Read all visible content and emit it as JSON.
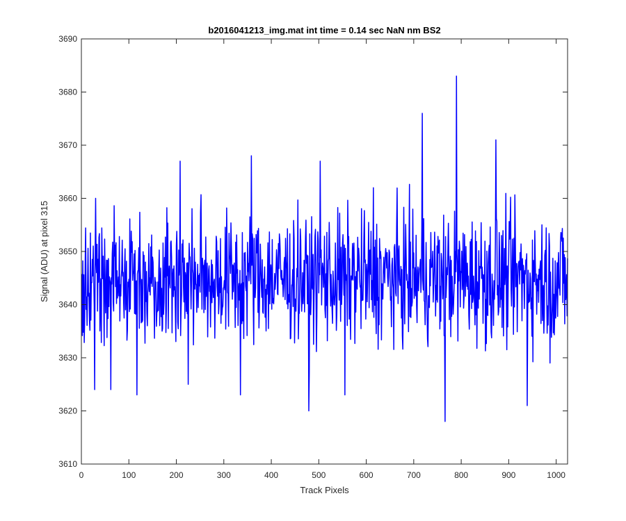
{
  "chart_data": {
    "type": "line",
    "title": "b2016041213_img.mat int time = 0.14 sec  NaN nm BS2",
    "xlabel": "Track Pixels",
    "ylabel": "Signal (ADU) at pixel 315",
    "xlim": [
      0,
      1024
    ],
    "ylim": [
      3610,
      3690
    ],
    "xticks": [
      0,
      100,
      200,
      300,
      400,
      500,
      600,
      700,
      800,
      900,
      1000
    ],
    "yticks": [
      3610,
      3620,
      3630,
      3640,
      3650,
      3660,
      3670,
      3680,
      3690
    ],
    "grid": false,
    "series": [
      {
        "color": "#0000ff",
        "x_start": 1,
        "x_step": 1,
        "noise_seed": 315,
        "mean": 3645,
        "spread": 6,
        "length": 1024,
        "notable_points": [
          {
            "x": 28,
            "y": 3624
          },
          {
            "x": 30,
            "y": 3660
          },
          {
            "x": 62,
            "y": 3624
          },
          {
            "x": 117,
            "y": 3623
          },
          {
            "x": 208,
            "y": 3667
          },
          {
            "x": 225,
            "y": 3625
          },
          {
            "x": 335,
            "y": 3623
          },
          {
            "x": 358,
            "y": 3668
          },
          {
            "x": 479,
            "y": 3620
          },
          {
            "x": 503,
            "y": 3667
          },
          {
            "x": 555,
            "y": 3623
          },
          {
            "x": 615,
            "y": 3662
          },
          {
            "x": 718,
            "y": 3676
          },
          {
            "x": 766,
            "y": 3618
          },
          {
            "x": 790,
            "y": 3683
          },
          {
            "x": 873,
            "y": 3671
          },
          {
            "x": 939,
            "y": 3621
          },
          {
            "x": 987,
            "y": 3629
          }
        ]
      }
    ]
  }
}
